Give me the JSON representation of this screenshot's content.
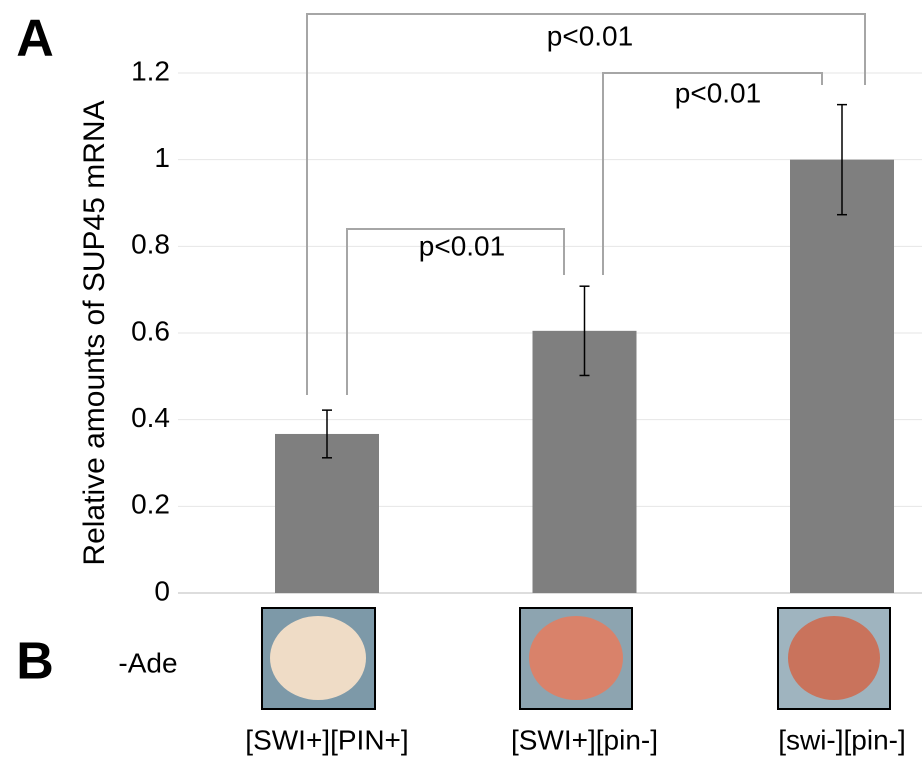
{
  "chart_data": {
    "type": "bar",
    "panel_labels": [
      "A",
      "B"
    ],
    "ylabel": "Relative amounts of SUP45 mRNA",
    "row_label": "-Ade",
    "categories": [
      "[SWI+][PIN+]",
      "[SWI+][pin-]",
      "[swi-][pin-]"
    ],
    "values": [
      0.367,
      0.605,
      1.0
    ],
    "errors": [
      0.055,
      0.103,
      0.127
    ],
    "color": "#7f7f7f",
    "ylim": [
      0,
      1.2
    ],
    "yticks": [
      0,
      0.2,
      0.4,
      0.6,
      0.8,
      1,
      1.2
    ],
    "grid": true,
    "annotations": [
      "p<0.01",
      "p<0.01",
      "p<0.01"
    ]
  }
}
